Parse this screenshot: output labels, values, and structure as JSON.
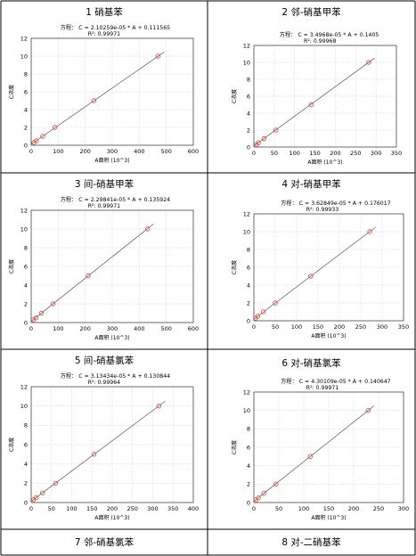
{
  "charts": [
    {
      "panel_title": "1   硝基苯",
      "chart_data": {
        "type": "scatter",
        "equation": "方程： C = 2.10259e-05 * A + 0.111565",
        "r2": "R²: 0.99971",
        "xlabel": "A面积 (10^3)",
        "ylabel": "C浓度",
        "xlim": [
          0,
          600
        ],
        "ylim": [
          0,
          12
        ],
        "xticks": [
          0,
          100,
          200,
          300,
          400,
          500,
          600
        ],
        "yticks": [
          0,
          2,
          4,
          6,
          8,
          10,
          12
        ],
        "x": [
          10,
          19,
          43,
          88,
          232,
          469
        ],
        "y": [
          0.3,
          0.5,
          1,
          2,
          5,
          10
        ],
        "fit": {
          "slope": 0.0210259,
          "intercept": 0.111565
        },
        "grid": true
      }
    },
    {
      "panel_title": "2   邻-硝基甲苯",
      "chart_data": {
        "type": "scatter",
        "equation": "方程： C = 3.4968e-05 * A + 0.1405",
        "r2": "R²: 0.99968",
        "xlabel": "A面积 (10^3)",
        "ylabel": "C浓度",
        "xlim": [
          0,
          350
        ],
        "ylim": [
          0,
          12
        ],
        "xticks": [
          0,
          50,
          100,
          150,
          200,
          250,
          300,
          350
        ],
        "yticks": [
          0,
          2,
          4,
          6,
          8,
          10,
          12
        ],
        "x": [
          6,
          11,
          25,
          54,
          141,
          282
        ],
        "y": [
          0.3,
          0.5,
          1,
          2,
          5,
          10
        ],
        "fit": {
          "slope": 0.034968,
          "intercept": 0.1405
        },
        "grid": true
      }
    },
    {
      "panel_title": "3   间-硝基甲苯",
      "chart_data": {
        "type": "scatter",
        "equation": "方程： C = 2.29841e-05 * A + 0.135924",
        "r2": "R²: 0.99971",
        "xlabel": "A面积 (10^3)",
        "ylabel": "C浓度",
        "xlim": [
          0,
          600
        ],
        "ylim": [
          0,
          12
        ],
        "xticks": [
          0,
          100,
          200,
          300,
          400,
          500,
          600
        ],
        "yticks": [
          0,
          2,
          4,
          6,
          8,
          10,
          12
        ],
        "x": [
          8,
          18,
          38,
          81,
          211,
          431
        ],
        "y": [
          0.3,
          0.5,
          1,
          2,
          5,
          10
        ],
        "fit": {
          "slope": 0.0229841,
          "intercept": 0.135924
        },
        "grid": true
      }
    },
    {
      "panel_title": "4   对-硝基甲苯",
      "chart_data": {
        "type": "scatter",
        "equation": "方程： C = 3.62849e-05 * A + 0.176017",
        "r2": "R²: 0.99933",
        "xlabel": "A面积 (10^3)",
        "ylabel": "C浓度",
        "xlim": [
          0,
          350
        ],
        "ylim": [
          0,
          12
        ],
        "xticks": [
          0,
          50,
          100,
          150,
          200,
          250,
          300,
          350
        ],
        "yticks": [
          0,
          2,
          4,
          6,
          8,
          10,
          12
        ],
        "x": [
          4,
          9,
          22,
          50,
          133,
          271
        ],
        "y": [
          0.3,
          0.5,
          1,
          2,
          5,
          10
        ],
        "fit": {
          "slope": 0.0362849,
          "intercept": 0.176017
        },
        "grid": true
      }
    },
    {
      "panel_title": "5   间-硝基氯苯",
      "chart_data": {
        "type": "scatter",
        "equation": "方程： C = 3.13434e-05 * A + 0.130844",
        "r2": "R²: 0.99964",
        "xlabel": "A面积 (10^3)",
        "ylabel": "C浓度",
        "xlim": [
          0,
          400
        ],
        "ylim": [
          0,
          12
        ],
        "xticks": [
          0,
          50,
          100,
          150,
          200,
          250,
          300,
          350,
          400
        ],
        "yticks": [
          0,
          2,
          4,
          6,
          8,
          10,
          12
        ],
        "x": [
          6,
          12,
          28,
          60,
          155,
          315
        ],
        "y": [
          0.3,
          0.5,
          1,
          2,
          5,
          10
        ],
        "fit": {
          "slope": 0.0313434,
          "intercept": 0.130844
        },
        "grid": true
      }
    },
    {
      "panel_title": "6   对-硝基氯苯",
      "chart_data": {
        "type": "scatter",
        "equation": "方程： C = 4.30109e-05 * A + 0.140647",
        "r2": "R²: 0.99971",
        "xlabel": "A面积 (10^3)",
        "ylabel": "C浓度",
        "xlim": [
          0,
          300
        ],
        "ylim": [
          0,
          12
        ],
        "xticks": [
          0,
          50,
          100,
          150,
          200,
          250,
          300
        ],
        "yticks": [
          0,
          2,
          4,
          6,
          8,
          10,
          12
        ],
        "x": [
          4,
          9,
          20,
          44,
          113,
          229
        ],
        "y": [
          0.3,
          0.5,
          1,
          2,
          5,
          10
        ],
        "fit": {
          "slope": 0.0430109,
          "intercept": 0.140647
        },
        "grid": true
      }
    }
  ],
  "bottom_titles": [
    "7   邻-硝基氯苯",
    "8   对-二硝基苯"
  ],
  "colors": {
    "marker": "#d9453a",
    "line": "#555555",
    "grid": "#bdbdbd",
    "border": "#000000"
  }
}
